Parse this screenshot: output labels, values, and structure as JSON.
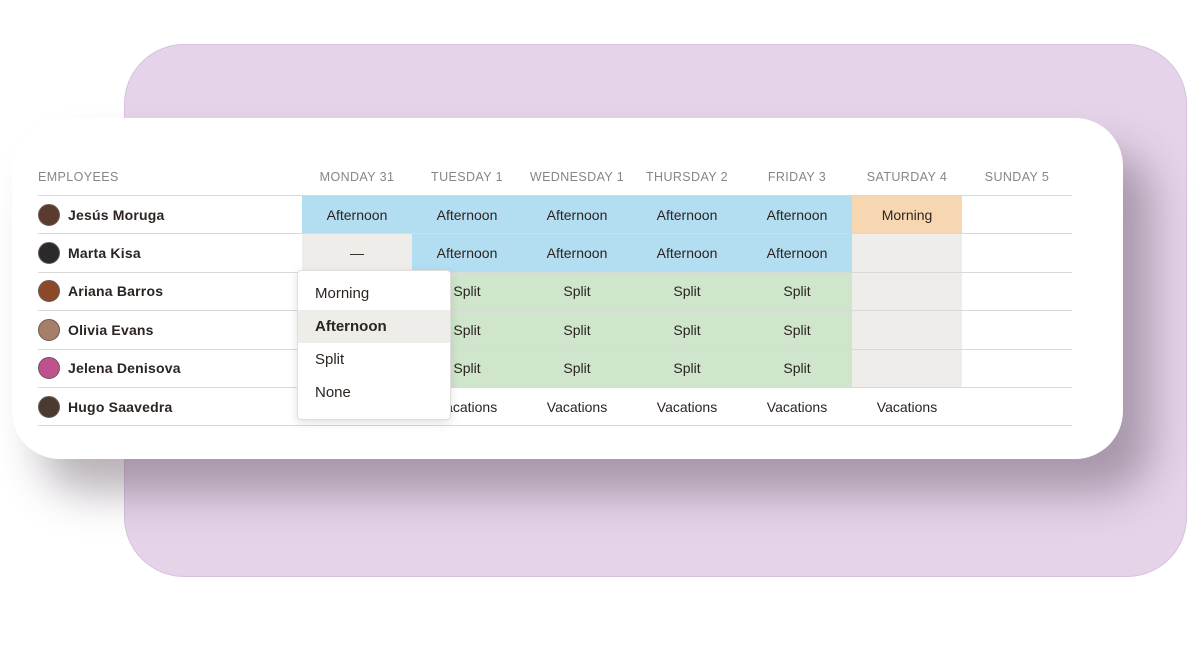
{
  "schedule": {
    "headers": {
      "employees": "EMPLOYEES",
      "days": [
        "MONDAY 31",
        "TUESDAY 1",
        "WEDNESDAY 1",
        "THURSDAY 2",
        "FRIDAY 3",
        "SATURDAY 4",
        "SUNDAY 5"
      ]
    },
    "rows": [
      {
        "name": "Jesús Moruga",
        "avatar_color": "#5a3b2e",
        "shifts": [
          "Afternoon",
          "Afternoon",
          "Afternoon",
          "Afternoon",
          "Afternoon",
          "Morning",
          ""
        ]
      },
      {
        "name": "Marta Kisa",
        "avatar_color": "#2a2a2a",
        "shifts": [
          "—",
          "Afternoon",
          "Afternoon",
          "Afternoon",
          "Afternoon",
          "",
          ""
        ]
      },
      {
        "name": "Ariana Barros",
        "avatar_color": "#8a4a2a",
        "shifts": [
          "",
          "Split",
          "Split",
          "Split",
          "Split",
          "",
          ""
        ]
      },
      {
        "name": "Olivia Evans",
        "avatar_color": "#a77f68",
        "shifts": [
          "",
          "Split",
          "Split",
          "Split",
          "Split",
          "",
          ""
        ]
      },
      {
        "name": "Jelena Denisova",
        "avatar_color": "#c0508e",
        "shifts": [
          "",
          "Split",
          "Split",
          "Split",
          "Split",
          "",
          ""
        ]
      },
      {
        "name": "Hugo Saavedra",
        "avatar_color": "#4a3a30",
        "shifts": [
          "",
          "Vacations",
          "Vacations",
          "Vacations",
          "Vacations",
          "Vacations",
          ""
        ]
      }
    ]
  },
  "dropdown": {
    "options": [
      "Morning",
      "Afternoon",
      "Split",
      "None"
    ],
    "selected": "Afternoon"
  },
  "colors": {
    "afternoon": "#b3def2",
    "morning": "#f7d7b1",
    "split": "#cfe6cc",
    "empty": "#efedea",
    "backdrop": "#e4d3e9"
  }
}
